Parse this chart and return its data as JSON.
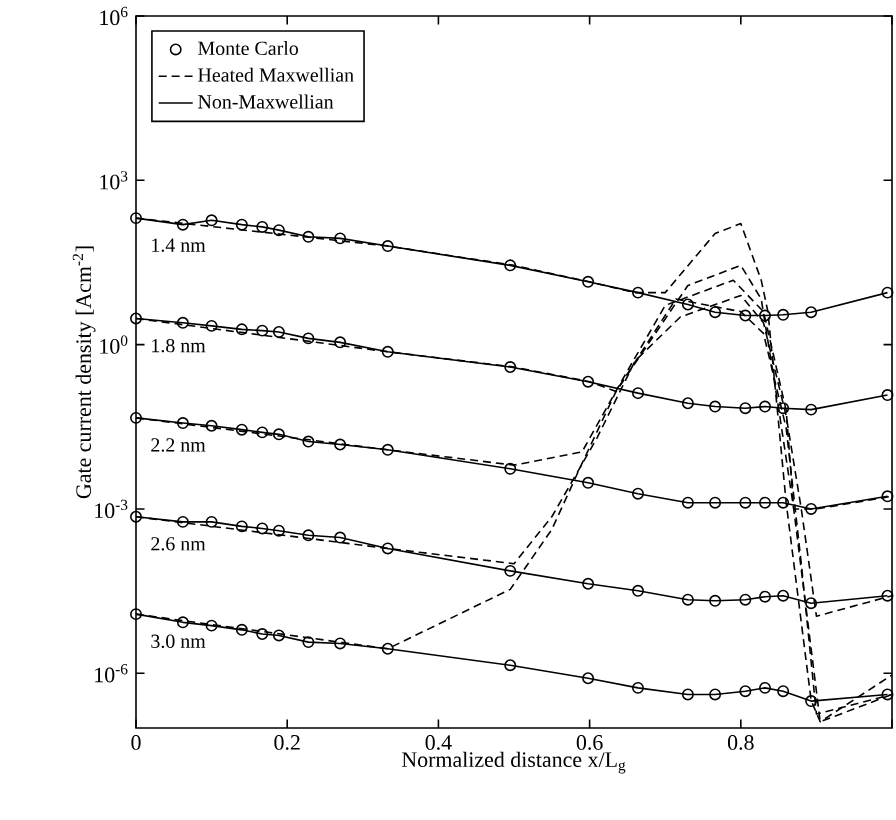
{
  "chart_data": {
    "type": "line",
    "xlabel": "Normalized distance x/L$_{g}$",
    "ylabel": "Gate current density [Acm$^{-2}$]",
    "log": "y",
    "xlim": [
      0,
      1
    ],
    "ylim": [
      1e-07,
      1000000.0
    ],
    "xticks": [
      0,
      0.2,
      0.4,
      0.6,
      0.8,
      {
        "value": 1,
        "label": null
      }
    ],
    "yticks": [
      {
        "value": 1e-06,
        "label": "10$^{-6}$"
      },
      {
        "value": 0.001,
        "label": "10$^{-3}$"
      },
      {
        "value": 1,
        "label": "10$^{0}$"
      },
      {
        "value": 1000.0,
        "label": "10$^{3}$"
      },
      {
        "value": 1000000.0,
        "label": "10$^{6}$"
      }
    ],
    "legend": "top left",
    "annotations": [
      "1.4 nm",
      "1.8 nm",
      "2.2 nm",
      "2.6 nm",
      "3.0 nm"
    ],
    "x": [
      0,
      0.062,
      0.1,
      0.14,
      0.167,
      0.189,
      0.228,
      0.27,
      0.333,
      0.495,
      0.598,
      0.664,
      0.73,
      0.766,
      0.806,
      0.832,
      0.856,
      0.893,
      0.994
    ],
    "series": [
      {
        "name": "Monte Carlo",
        "type": "scatter",
        "marker": "circle",
        "color": "#000000",
        "values": [
          204,
          155,
          186,
          155,
          141,
          123,
          93,
          87,
          63,
          28,
          14,
          8.9,
          5.4,
          3.9,
          3.4,
          3.4,
          3.5,
          3.9,
          8.9
        ]
      },
      {
        "type": "scatter",
        "marker": "circle",
        "color": "#000000",
        "values": [
          3.0,
          2.5,
          2.2,
          1.9,
          1.8,
          1.7,
          1.3,
          1.1,
          0.74,
          0.39,
          0.21,
          0.13,
          0.085,
          0.074,
          0.069,
          0.074,
          0.069,
          0.065,
          0.12
        ]
      },
      {
        "type": "scatter",
        "marker": "circle",
        "color": "#000000",
        "values": [
          0.046,
          0.037,
          0.033,
          0.028,
          0.025,
          0.023,
          0.017,
          0.015,
          0.012,
          0.0054,
          0.003,
          0.0019,
          0.0013,
          0.0013,
          0.0013,
          0.0013,
          0.0013,
          0.001,
          0.0017
        ]
      },
      {
        "type": "scatter",
        "marker": "circle",
        "color": "#000000",
        "values": [
          0.00072,
          0.00058,
          0.00058,
          0.00048,
          0.00044,
          0.0004,
          0.00033,
          0.0003,
          0.00019,
          7.4e-05,
          4.3e-05,
          3.2e-05,
          2.2e-05,
          2.1e-05,
          2.2e-05,
          2.5e-05,
          2.6e-05,
          1.9e-05,
          2.6e-05
        ]
      },
      {
        "type": "scatter",
        "marker": "circle",
        "color": "#000000",
        "values": [
          1.2e-05,
          8.5e-06,
          7.4e-06,
          6.2e-06,
          5.2e-06,
          4.9e-06,
          3.7e-06,
          3.5e-06,
          2.8e-06,
          1.4e-06,
          8.1e-07,
          5.4e-07,
          4.1e-07,
          4.1e-07,
          4.7e-07,
          5.4e-07,
          4.7e-07,
          3.1e-07,
          4.1e-07
        ]
      },
      {
        "name": "Heated Maxwellian",
        "type": "line",
        "line_style": "dashed",
        "color": "#000000",
        "x": [
          0,
          0.333,
          0.5,
          0.6,
          0.66,
          0.7,
          0.766,
          0.8,
          0.827,
          0.836,
          0.86,
          0.893,
          0.905,
          1.0
        ],
        "values": [
          204,
          63,
          28,
          14,
          8.9,
          8.9,
          107,
          162,
          15,
          3.9,
          0.0013,
          3.2e-07,
          1.3e-07,
          9.3e-07
        ]
      },
      {
        "type": "line",
        "line_style": "dashed",
        "color": "#000000",
        "x": [
          0,
          0.333,
          0.5,
          0.6,
          0.635,
          0.73,
          0.8,
          0.827,
          0.85,
          0.87,
          0.905,
          1.0
        ],
        "values": [
          3.0,
          0.74,
          0.39,
          0.21,
          0.14,
          12,
          28,
          6.8,
          0.069,
          0.001,
          1.3e-07,
          4.1e-07
        ]
      },
      {
        "type": "line",
        "line_style": "dashed",
        "color": "#000000",
        "x": [
          0,
          0.333,
          0.5,
          0.59,
          0.64,
          0.7,
          0.79,
          0.83,
          0.86,
          0.87,
          0.9,
          1.0
        ],
        "values": [
          0.046,
          0.012,
          0.0063,
          0.011,
          0.19,
          5.2,
          15,
          4.0,
          0.063,
          0.001,
          0.001,
          0.0017
        ]
      },
      {
        "type": "line",
        "line_style": "dashed",
        "color": "#000000",
        "x": [
          0,
          0.333,
          0.5,
          0.55,
          0.61,
          0.66,
          0.72,
          0.8,
          0.83,
          0.86,
          0.88,
          0.9,
          1.0
        ],
        "values": [
          0.00072,
          0.00019,
          0.0001,
          0.00072,
          0.02,
          0.5,
          3.2,
          7.9,
          2.5,
          0.05,
          0.001,
          1.1e-05,
          2.6e-05
        ]
      },
      {
        "type": "line",
        "line_style": "dashed",
        "color": "#000000",
        "x": [
          0,
          0.333,
          0.495,
          0.55,
          0.59,
          0.635,
          0.714,
          0.8,
          0.83,
          0.86,
          0.88,
          0.9,
          1.0
        ],
        "values": [
          1.2e-05,
          2.8e-06,
          3.4e-05,
          0.00042,
          0.0068,
          0.14,
          6.8,
          4.0,
          1.6,
          0.03,
          0.0001,
          1.8e-07,
          4.1e-07
        ]
      },
      {
        "name": "Non-Maxwellian",
        "line_style": "solid",
        "color": "#000000",
        "values": [
          204,
          155,
          186,
          155,
          141,
          123,
          93,
          87,
          63,
          28,
          14,
          8.9,
          5.4,
          3.9,
          3.4,
          3.4,
          3.5,
          3.9,
          8.9
        ]
      },
      {
        "line_style": "solid",
        "color": "#000000",
        "values": [
          3.0,
          2.5,
          2.2,
          1.9,
          1.8,
          1.7,
          1.3,
          1.1,
          0.74,
          0.39,
          0.21,
          0.13,
          0.085,
          0.074,
          0.069,
          0.074,
          0.069,
          0.065,
          0.12
        ]
      },
      {
        "line_style": "solid",
        "color": "#000000",
        "values": [
          0.046,
          0.037,
          0.033,
          0.028,
          0.025,
          0.023,
          0.017,
          0.015,
          0.012,
          0.0054,
          0.003,
          0.0019,
          0.0013,
          0.0013,
          0.0013,
          0.0013,
          0.0013,
          0.001,
          0.0017
        ]
      },
      {
        "line_style": "solid",
        "color": "#000000",
        "values": [
          0.00072,
          0.00058,
          0.00058,
          0.00048,
          0.00044,
          0.0004,
          0.00033,
          0.0003,
          0.00019,
          7.4e-05,
          4.3e-05,
          3.2e-05,
          2.2e-05,
          2.1e-05,
          2.2e-05,
          2.5e-05,
          2.6e-05,
          1.9e-05,
          2.6e-05
        ]
      },
      {
        "line_style": "solid",
        "color": "#000000",
        "values": [
          1.2e-05,
          8.5e-06,
          7.4e-06,
          6.2e-06,
          5.2e-06,
          4.9e-06,
          3.7e-06,
          3.5e-06,
          2.8e-06,
          1.4e-06,
          8.1e-07,
          5.4e-07,
          4.1e-07,
          4.1e-07,
          4.7e-07,
          5.4e-07,
          4.7e-07,
          3.1e-07,
          4.1e-07
        ]
      }
    ]
  }
}
